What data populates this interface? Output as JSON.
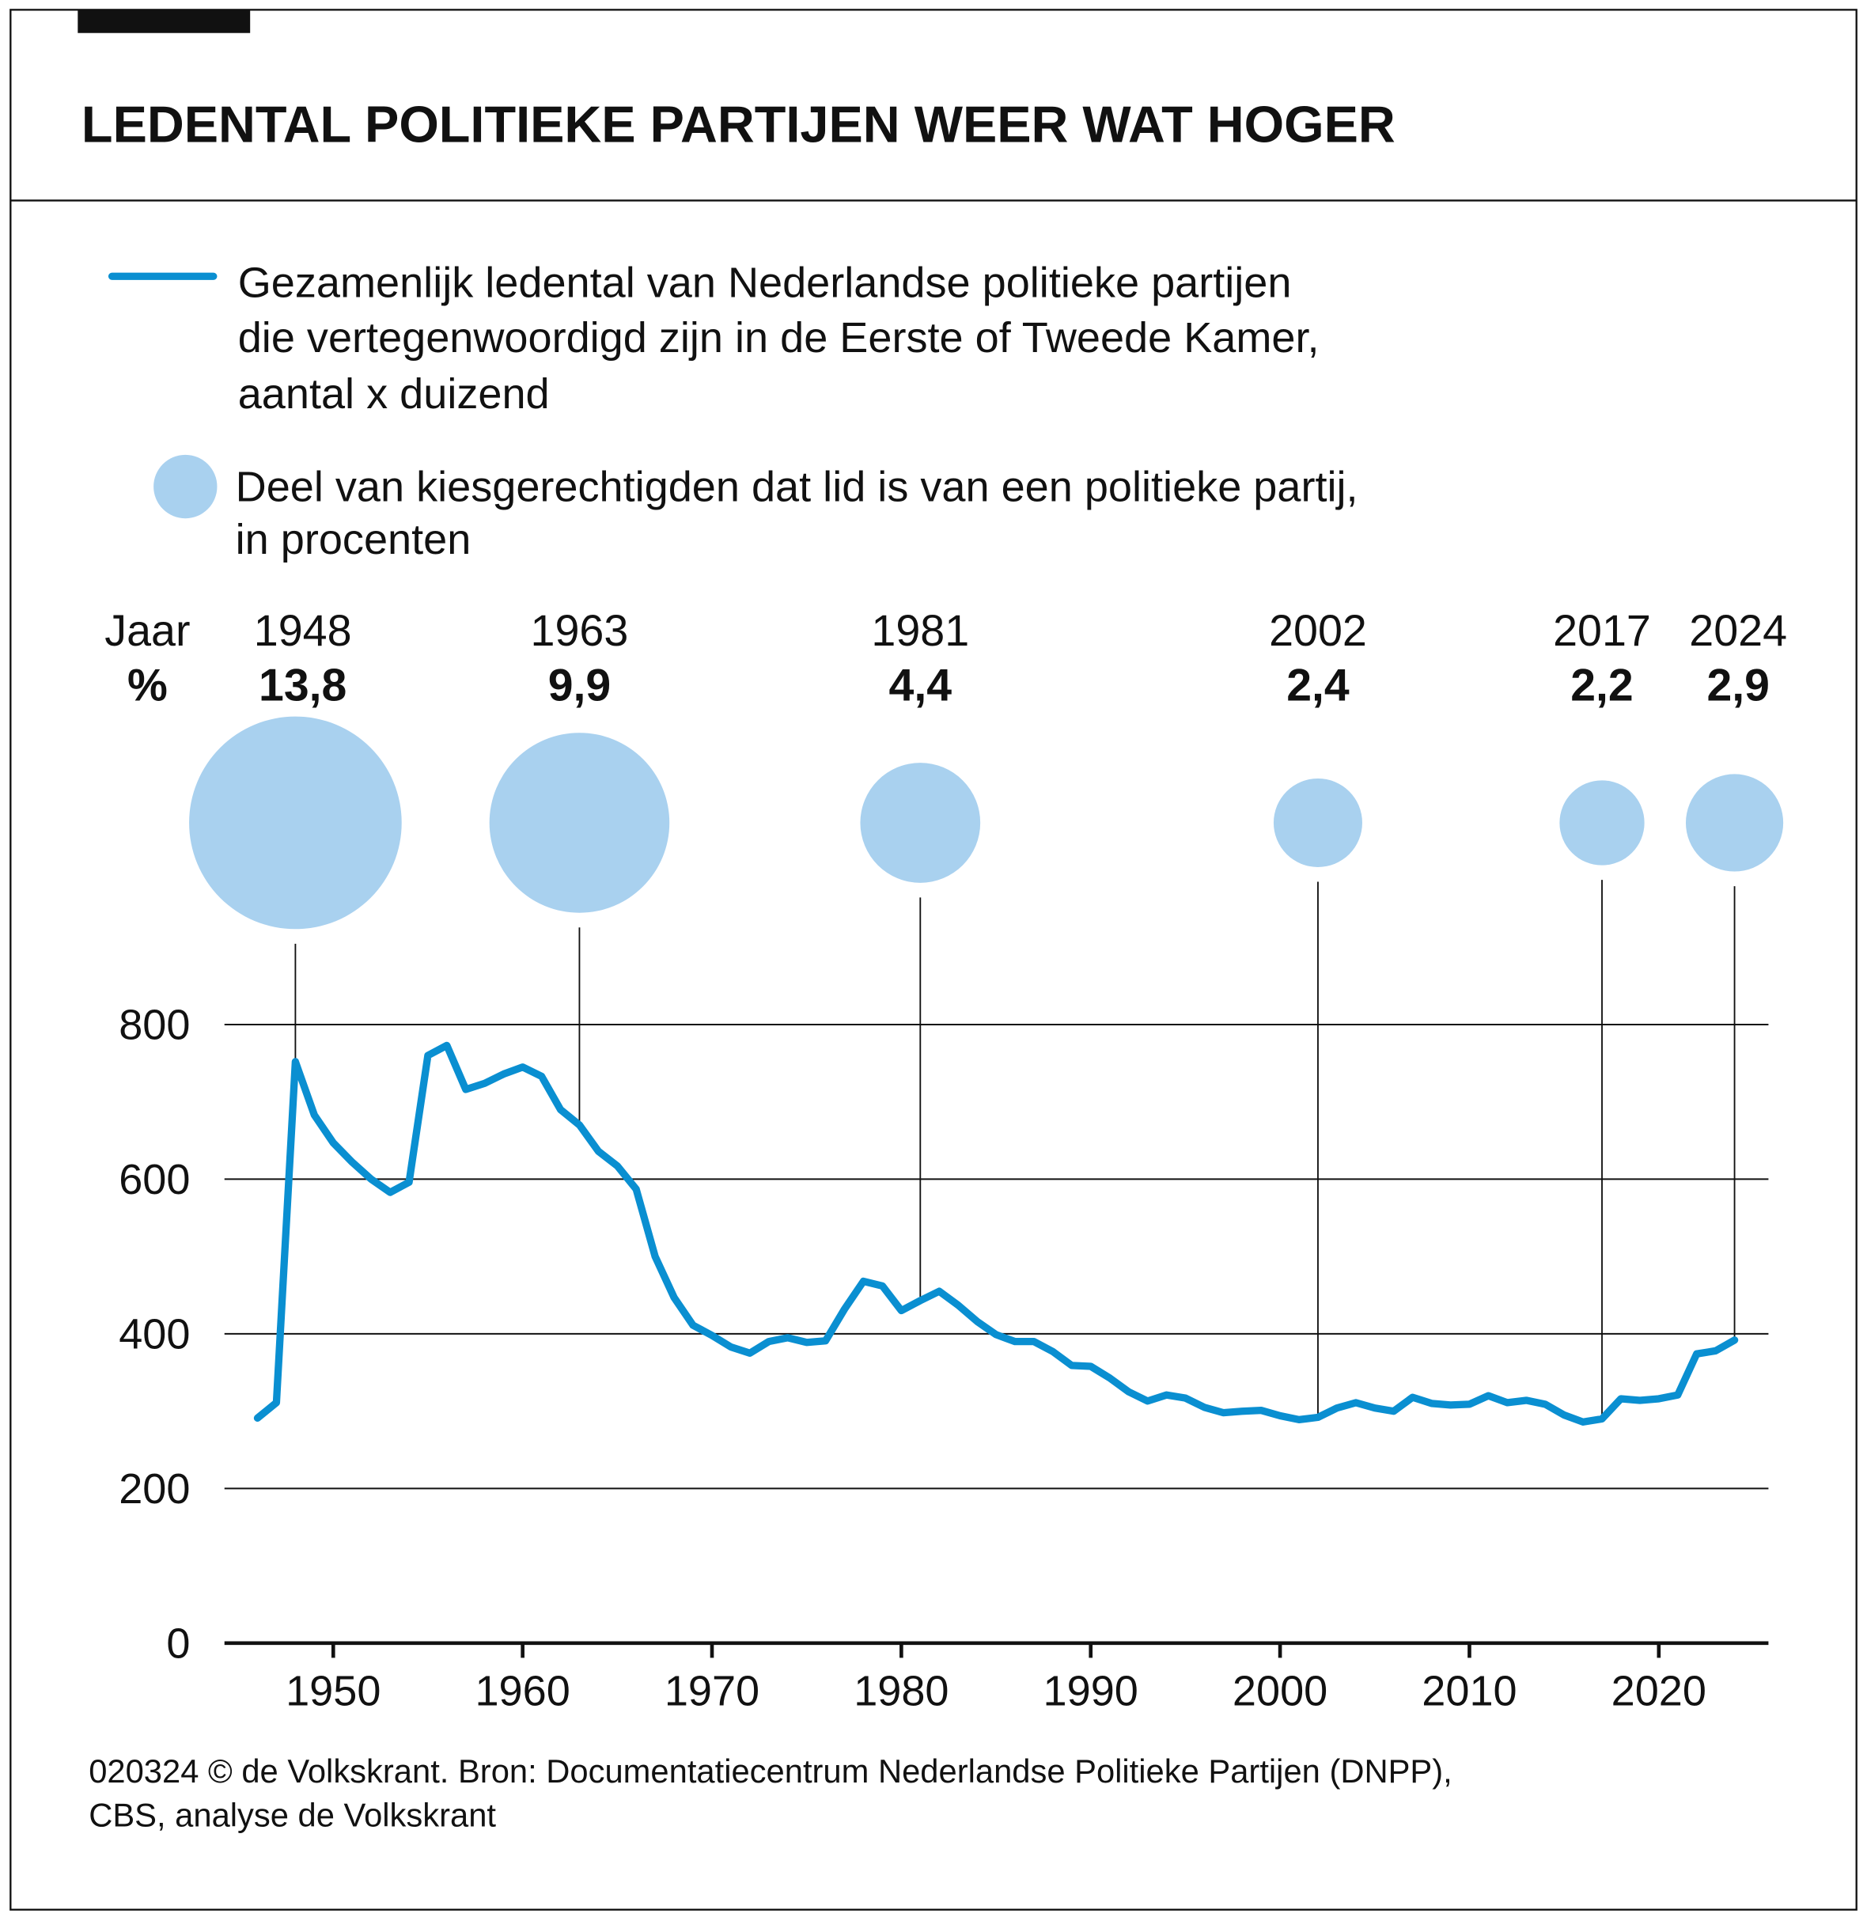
{
  "title": "LEDENTAL POLITIEKE PARTIJEN WEER WAT HOGER",
  "colors": {
    "line": "#0a8fd1",
    "bubble": "#a9d1ef",
    "text": "#111111"
  },
  "legend": {
    "line_text": [
      "Gezamenlijk ledental van Nederlandse politieke partijen",
      "die vertegenwoordigd zijn in de Eerste of Tweede Kamer,",
      "aantal x duizend"
    ],
    "bubble_text": [
      "Deel van kiesgerechtigden dat lid is van een politieke partij,",
      "in procenten"
    ]
  },
  "bubble_header": {
    "year_label": "Jaar",
    "pct_label": "%"
  },
  "footer": [
    "020324 © de Volkskrant. Bron: Documentatiecentrum Nederlandse Politieke Partijen (DNPP),",
    "CBS, analyse de Volkskrant"
  ],
  "chart_data": [
    {
      "type": "line",
      "title": "",
      "xlabel": "",
      "ylabel": "",
      "ylim": [
        0,
        800
      ],
      "xlim": [
        1945,
        2025
      ],
      "yticks": [
        0,
        200,
        400,
        600,
        800
      ],
      "xticks": [
        1950,
        1960,
        1970,
        1980,
        1990,
        2000,
        2010,
        2020
      ],
      "grid": "horizontal",
      "series": [
        {
          "name": "Gezamenlijk ledental van Nederlandse politieke partijen die vertegenwoordigd zijn in de Eerste of Tweede Kamer, aantal x duizend",
          "x": [
            1946,
            1947,
            1948,
            1949,
            1950,
            1951,
            1952,
            1953,
            1954,
            1955,
            1956,
            1957,
            1958,
            1959,
            1960,
            1961,
            1962,
            1963,
            1964,
            1965,
            1966,
            1967,
            1968,
            1969,
            1970,
            1971,
            1972,
            1973,
            1974,
            1975,
            1976,
            1977,
            1978,
            1979,
            1980,
            1981,
            1982,
            1983,
            1984,
            1985,
            1986,
            1987,
            1988,
            1989,
            1990,
            1991,
            1992,
            1993,
            1994,
            1995,
            1996,
            1997,
            1998,
            1999,
            2000,
            2001,
            2002,
            2003,
            2004,
            2005,
            2006,
            2007,
            2008,
            2009,
            2010,
            2011,
            2012,
            2013,
            2014,
            2015,
            2016,
            2017,
            2018,
            2019,
            2020,
            2021,
            2022,
            2023,
            2024
          ],
          "values": [
            291,
            311,
            752,
            683,
            647,
            622,
            600,
            583,
            596,
            760,
            773,
            716,
            724,
            736,
            745,
            733,
            690,
            670,
            636,
            617,
            587,
            500,
            447,
            411,
            398,
            383,
            375,
            390,
            395,
            389,
            391,
            432,
            468,
            462,
            430,
            443,
            455,
            437,
            416,
            399,
            390,
            390,
            377,
            359,
            358,
            343,
            325,
            313,
            321,
            317,
            305,
            298,
            300,
            301,
            294,
            289,
            292,
            304,
            311,
            304,
            300,
            318,
            310,
            308,
            309,
            320,
            311,
            314,
            309,
            295,
            286,
            290,
            316,
            314,
            316,
            321,
            374,
            378,
            392
          ]
        }
      ]
    },
    {
      "type": "bubble",
      "title": "",
      "series": [
        {
          "name": "Deel van kiesgerechtigden dat lid is van een politieke partij, in procenten",
          "years": [
            "1948",
            "1963",
            "1981",
            "2002",
            "2017",
            "2024"
          ],
          "values": [
            13.8,
            9.9,
            4.4,
            2.4,
            2.2,
            2.9
          ],
          "labels": [
            "13,8",
            "9,9",
            "4,4",
            "2,4",
            "2,2",
            "2,9"
          ]
        }
      ]
    }
  ]
}
